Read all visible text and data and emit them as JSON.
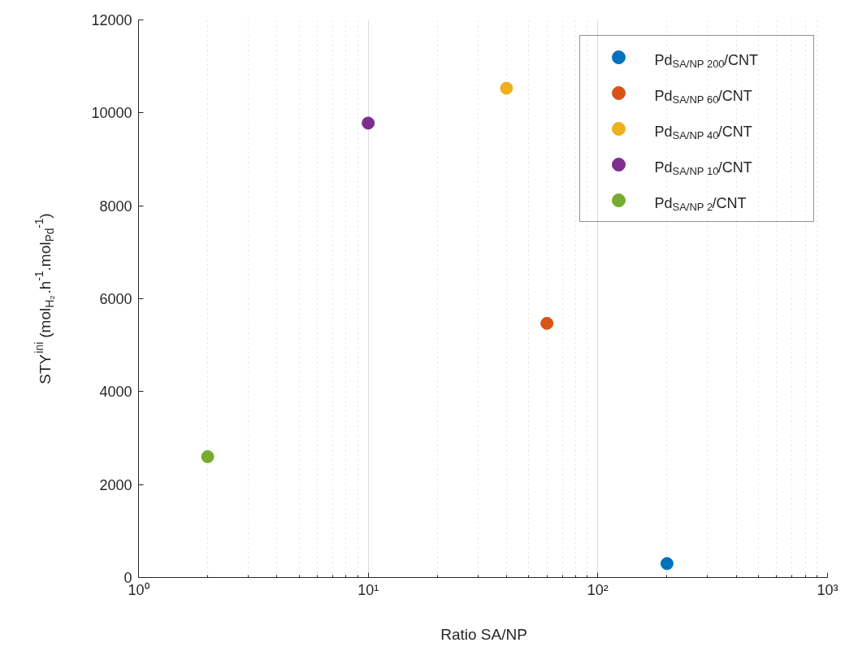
{
  "chart_data": {
    "type": "scatter",
    "xlabel": "Ratio SA/NP",
    "ylabel": "STY$^{ini}$ (mol$_{H₂}$.h$^{-1}$.mol$_{Pd}$$^{-1}$)",
    "log": "x",
    "xlim": [
      1,
      1000
    ],
    "xticks": [
      {
        "value": 1,
        "label": "10⁰"
      },
      {
        "value": 10,
        "label": "10¹"
      },
      {
        "value": 100,
        "label": "10²"
      },
      {
        "value": 1000,
        "label": "10³"
      }
    ],
    "ylim": [
      0,
      12000
    ],
    "yticks": [
      0,
      2000,
      4000,
      6000,
      8000,
      10000,
      12000
    ],
    "grid": "x",
    "legend": "top right",
    "marker": "circle",
    "series": [
      {
        "name": "Pd$_{SA/NP 200}$/CNT",
        "color": "#0072bd",
        "x": [
          200
        ],
        "values": [
          300
        ]
      },
      {
        "name": "Pd$_{SA/NP 60}$/CNT",
        "color": "#d95319",
        "x": [
          60
        ],
        "values": [
          5470
        ]
      },
      {
        "name": "Pd$_{SA/NP 40}$/CNT",
        "color": "#edb120",
        "x": [
          40
        ],
        "values": [
          10530
        ]
      },
      {
        "name": "Pd$_{SA/NP 10}$/CNT",
        "color": "#7e2f8e",
        "x": [
          10
        ],
        "values": [
          9780
        ]
      },
      {
        "name": "Pd$_{SA/NP 2}$/CNT",
        "color": "#77ac30",
        "x": [
          2
        ],
        "values": [
          2600
        ]
      }
    ]
  }
}
